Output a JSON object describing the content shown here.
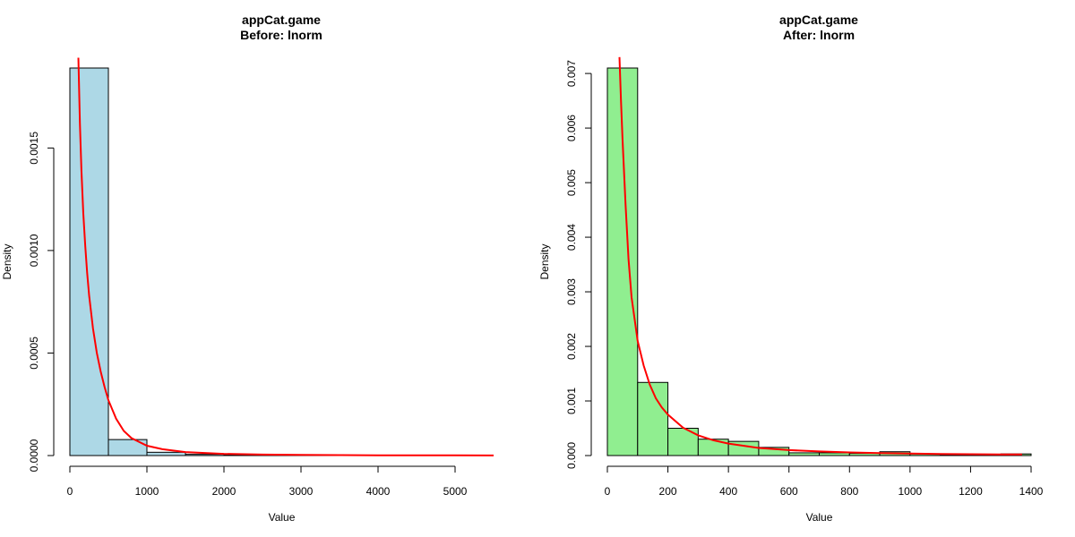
{
  "chart_data": [
    {
      "type": "bar",
      "title": "appCat.game",
      "subtitle": "Before:  lnorm",
      "xlabel": "Value",
      "ylabel": "Density",
      "bar_color": "#ADD8E6",
      "curve_color": "#FF0000",
      "bin_edges": [
        0,
        500,
        1000,
        1500,
        2000,
        2500,
        3000,
        3500,
        4000,
        4500,
        5000,
        5500
      ],
      "values": [
        0.00189,
        7.8e-05,
        1.6e-05,
        6e-06,
        4e-06,
        3e-06,
        3e-06,
        0.0,
        0.0,
        0.0,
        0.0
      ],
      "xlim": [
        0,
        5500
      ],
      "ylim": [
        0,
        0.00189
      ],
      "xticks": [
        0,
        1000,
        2000,
        3000,
        4000,
        5000
      ],
      "xtick_labels": [
        "0",
        "1000",
        "2000",
        "3000",
        "4000",
        "5000"
      ],
      "yticks": [
        0,
        0.0005,
        0.001,
        0.0015
      ],
      "ytick_labels": [
        "0.0000",
        "0.0005",
        "0.0010",
        "0.0015"
      ],
      "curve": {
        "name": "lnorm",
        "x": [
          110,
          130,
          150,
          175,
          200,
          225,
          250,
          300,
          350,
          400,
          450,
          500,
          600,
          700,
          800,
          1000,
          1200,
          1500,
          2000,
          2500,
          3000,
          3500,
          4000,
          5000,
          5500
        ],
        "y": [
          0.00194,
          0.00162,
          0.00139,
          0.00118,
          0.00102,
          0.00089,
          0.00078,
          0.00062,
          0.0005,
          0.00041,
          0.000335,
          0.00027,
          0.00018,
          0.00012,
          8.5e-05,
          4.8e-05,
          3.1e-05,
          1.7e-05,
          8.5e-06,
          5e-06,
          3.2e-06,
          2.2e-06,
          1.5e-06,
          8e-07,
          6e-07
        ]
      }
    },
    {
      "type": "bar",
      "title": "appCat.game",
      "subtitle": "After:  lnorm",
      "xlabel": "Value",
      "ylabel": "Density",
      "bar_color": "#90EE90",
      "curve_color": "#FF0000",
      "bin_edges": [
        0,
        100,
        200,
        300,
        400,
        500,
        600,
        700,
        800,
        900,
        1000,
        1100,
        1200,
        1300,
        1400
      ],
      "values": [
        0.0071,
        0.00134,
        0.0005,
        0.0003,
        0.00026,
        0.00015,
        5e-05,
        5e-05,
        4e-05,
        7e-05,
        3e-05,
        1e-05,
        1e-05,
        3e-05
      ],
      "xlim": [
        0,
        1400
      ],
      "ylim": [
        0,
        0.0071
      ],
      "xticks": [
        0,
        200,
        400,
        600,
        800,
        1000,
        1200,
        1400
      ],
      "xtick_labels": [
        "0",
        "200",
        "400",
        "600",
        "800",
        "1000",
        "1200",
        "1400"
      ],
      "yticks": [
        0,
        0.001,
        0.002,
        0.003,
        0.004,
        0.005,
        0.006,
        0.007
      ],
      "ytick_labels": [
        "0.000",
        "0.001",
        "0.002",
        "0.003",
        "0.004",
        "0.005",
        "0.006",
        "0.007"
      ],
      "curve": {
        "name": "lnorm",
        "x": [
          40,
          45,
          50,
          60,
          70,
          80,
          90,
          100,
          120,
          140,
          160,
          180,
          200,
          250,
          300,
          350,
          400,
          500,
          600,
          700,
          800,
          900,
          1000,
          1100,
          1200,
          1300,
          1370
        ],
        "y": [
          0.0073,
          0.0065,
          0.0058,
          0.0046,
          0.0036,
          0.0029,
          0.0025,
          0.0021,
          0.00165,
          0.0013,
          0.00105,
          0.00088,
          0.00075,
          0.00051,
          0.00037,
          0.00028,
          0.00022,
          0.00014,
          0.0001,
          7.5e-05,
          5.7e-05,
          4.5e-05,
          3.6e-05,
          3e-05,
          2.5e-05,
          2.1e-05,
          1.9e-05
        ]
      }
    }
  ]
}
